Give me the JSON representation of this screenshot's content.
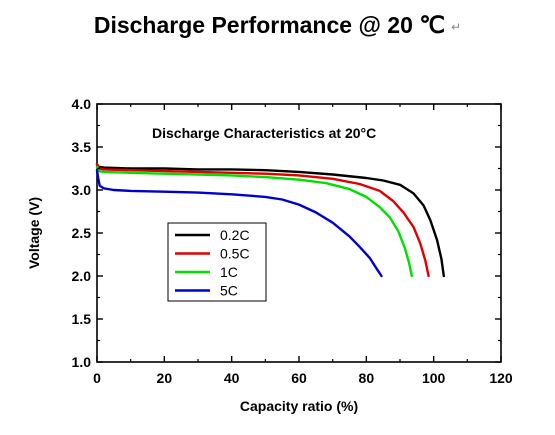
{
  "page": {
    "title": "Discharge Performance @ 20 ℃",
    "return_mark": "↵"
  },
  "chart_data": {
    "type": "line",
    "title": "Discharge Characteristics at 20°C",
    "xlabel": "Capacity ratio (%)",
    "ylabel": "Voltage (V)",
    "xlim": [
      0,
      120
    ],
    "ylim": [
      1.0,
      4.0
    ],
    "xticks": [
      "0",
      "20",
      "40",
      "60",
      "80",
      "100",
      "120"
    ],
    "yticks": [
      "1.0",
      "1.5",
      "2.0",
      "2.5",
      "3.0",
      "3.5",
      "4.0"
    ],
    "legend_position": "lower-left",
    "series": [
      {
        "name": "0.2C",
        "color": "#000000",
        "points": [
          [
            0,
            3.3
          ],
          [
            0.5,
            3.27
          ],
          [
            2,
            3.26
          ],
          [
            10,
            3.25
          ],
          [
            20,
            3.25
          ],
          [
            30,
            3.24
          ],
          [
            40,
            3.24
          ],
          [
            50,
            3.23
          ],
          [
            60,
            3.21
          ],
          [
            70,
            3.18
          ],
          [
            80,
            3.14
          ],
          [
            85,
            3.11
          ],
          [
            90,
            3.06
          ],
          [
            94,
            2.96
          ],
          [
            97,
            2.82
          ],
          [
            99,
            2.65
          ],
          [
            101,
            2.42
          ],
          [
            102.3,
            2.2
          ],
          [
            103,
            2.0
          ]
        ]
      },
      {
        "name": "0.5C",
        "color": "#e00000",
        "points": [
          [
            0,
            3.3
          ],
          [
            0.5,
            3.25
          ],
          [
            2,
            3.24
          ],
          [
            10,
            3.23
          ],
          [
            20,
            3.22
          ],
          [
            30,
            3.21
          ],
          [
            40,
            3.2
          ],
          [
            50,
            3.19
          ],
          [
            60,
            3.17
          ],
          [
            70,
            3.13
          ],
          [
            78,
            3.07
          ],
          [
            84,
            2.99
          ],
          [
            88,
            2.87
          ],
          [
            91,
            2.74
          ],
          [
            94,
            2.57
          ],
          [
            96,
            2.38
          ],
          [
            97.5,
            2.18
          ],
          [
            98.5,
            2.0
          ]
        ]
      },
      {
        "name": "1C",
        "color": "#00e000",
        "points": [
          [
            0,
            3.27
          ],
          [
            0.5,
            3.22
          ],
          [
            2,
            3.21
          ],
          [
            10,
            3.2
          ],
          [
            20,
            3.19
          ],
          [
            30,
            3.18
          ],
          [
            40,
            3.17
          ],
          [
            50,
            3.15
          ],
          [
            60,
            3.12
          ],
          [
            68,
            3.08
          ],
          [
            75,
            3.01
          ],
          [
            80,
            2.92
          ],
          [
            84,
            2.8
          ],
          [
            87,
            2.68
          ],
          [
            89.5,
            2.52
          ],
          [
            91.5,
            2.32
          ],
          [
            92.7,
            2.15
          ],
          [
            93.5,
            2.0
          ]
        ]
      },
      {
        "name": "5C",
        "color": "#0000cc",
        "points": [
          [
            0,
            3.23
          ],
          [
            0.3,
            3.15
          ],
          [
            0.8,
            3.05
          ],
          [
            2,
            3.02
          ],
          [
            5,
            3.0
          ],
          [
            10,
            2.99
          ],
          [
            20,
            2.98
          ],
          [
            30,
            2.97
          ],
          [
            40,
            2.95
          ],
          [
            50,
            2.92
          ],
          [
            55,
            2.89
          ],
          [
            60,
            2.83
          ],
          [
            65,
            2.74
          ],
          [
            70,
            2.62
          ],
          [
            75,
            2.46
          ],
          [
            78,
            2.34
          ],
          [
            81,
            2.21
          ],
          [
            83,
            2.09
          ],
          [
            84.5,
            2.0
          ]
        ]
      }
    ]
  }
}
